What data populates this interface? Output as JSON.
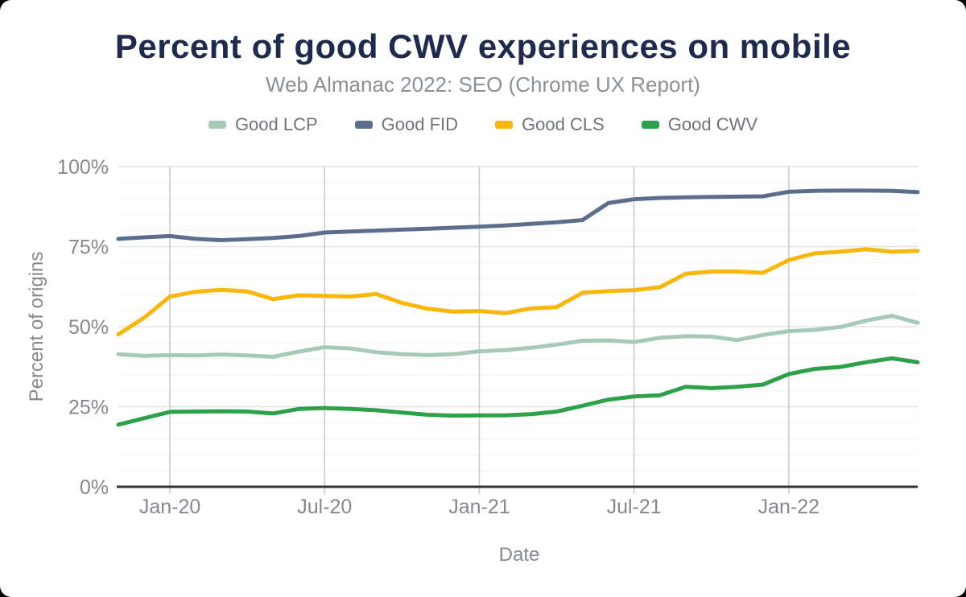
{
  "header": {
    "title": "Percent of good CWV experiences on mobile",
    "subtitle": "Web Almanac 2022: SEO (Chrome UX Report)"
  },
  "axes": {
    "y_title": "Percent of origins",
    "x_title": "Date",
    "y_ticks": [
      {
        "label": "0%",
        "value": 0
      },
      {
        "label": "25%",
        "value": 25
      },
      {
        "label": "50%",
        "value": 50
      },
      {
        "label": "75%",
        "value": 75
      },
      {
        "label": "100%",
        "value": 100
      }
    ],
    "x_ticks": [
      {
        "label": "Jan-20",
        "index": 2
      },
      {
        "label": "Jul-20",
        "index": 8
      },
      {
        "label": "Jan-21",
        "index": 14
      },
      {
        "label": "Jul-21",
        "index": 20
      },
      {
        "label": "Jan-22",
        "index": 26
      }
    ]
  },
  "style_colors": {
    "title": "#1e2b4e",
    "subtitle": "#8b9095",
    "tick_text": "#85898e",
    "grid_major": "#e2e2e2",
    "grid_minor": "#f2f2f2",
    "grid_vertical": "#cccccc",
    "axis_line": "#333333"
  },
  "chart_data": {
    "type": "line",
    "title": "Percent of good CWV experiences on mobile",
    "subtitle": "Web Almanac 2022: SEO (Chrome UX Report)",
    "xlabel": "Date",
    "ylabel": "Percent of origins",
    "ylim": [
      0,
      100
    ],
    "grid": true,
    "legend_position": "top",
    "x": [
      "Nov-19",
      "Dec-19",
      "Jan-20",
      "Feb-20",
      "Mar-20",
      "Apr-20",
      "May-20",
      "Jun-20",
      "Jul-20",
      "Aug-20",
      "Sep-20",
      "Oct-20",
      "Nov-20",
      "Dec-20",
      "Jan-21",
      "Feb-21",
      "Mar-21",
      "Apr-21",
      "May-21",
      "Jun-21",
      "Jul-21",
      "Aug-21",
      "Sep-21",
      "Oct-21",
      "Nov-21",
      "Dec-21",
      "Jan-22",
      "Feb-22",
      "Mar-22",
      "Apr-22",
      "May-22",
      "Jun-22"
    ],
    "series": [
      {
        "name": "Good LCP",
        "color": "#a7cab6",
        "values": [
          41.4,
          40.9,
          41.1,
          41.0,
          41.3,
          41.0,
          40.6,
          42.2,
          43.6,
          43.2,
          42.0,
          41.4,
          41.1,
          41.4,
          42.3,
          42.7,
          43.4,
          44.4,
          45.6,
          45.7,
          45.2,
          46.5,
          47.0,
          46.9,
          45.8,
          47.4,
          48.6,
          49.0,
          49.9,
          51.9,
          53.4,
          51.2
        ]
      },
      {
        "name": "Good FID",
        "color": "#5c6e8e",
        "values": [
          77.4,
          77.9,
          78.3,
          77.4,
          77.0,
          77.3,
          77.7,
          78.3,
          79.4,
          79.7,
          80.0,
          80.3,
          80.6,
          80.9,
          81.2,
          81.6,
          82.1,
          82.6,
          83.3,
          88.6,
          89.8,
          90.2,
          90.4,
          90.5,
          90.6,
          90.7,
          92.1,
          92.4,
          92.5,
          92.5,
          92.4,
          92.0
        ]
      },
      {
        "name": "Good CLS",
        "color": "#f9b70c",
        "values": [
          47.6,
          52.8,
          59.4,
          60.9,
          61.5,
          61.0,
          58.6,
          59.8,
          59.6,
          59.4,
          60.2,
          57.4,
          55.6,
          54.7,
          54.9,
          54.2,
          55.7,
          56.1,
          60.6,
          61.1,
          61.4,
          62.3,
          66.5,
          67.2,
          67.2,
          66.8,
          70.8,
          72.9,
          73.4,
          74.2,
          73.4,
          73.7
        ]
      },
      {
        "name": "Good CWV",
        "color": "#2da04a",
        "values": [
          19.4,
          21.4,
          23.4,
          23.5,
          23.6,
          23.5,
          22.9,
          24.3,
          24.6,
          24.3,
          23.9,
          23.2,
          22.5,
          22.2,
          22.3,
          22.3,
          22.7,
          23.5,
          25.3,
          27.2,
          28.2,
          28.6,
          31.2,
          30.8,
          31.2,
          31.9,
          35.2,
          36.8,
          37.4,
          38.9,
          40.1,
          38.9
        ]
      }
    ]
  }
}
